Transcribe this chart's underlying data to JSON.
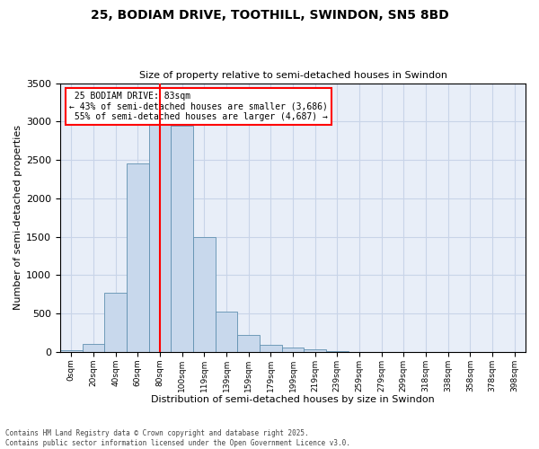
{
  "title_line1": "25, BODIAM DRIVE, TOOTHILL, SWINDON, SN5 8BD",
  "title_line2": "Size of property relative to semi-detached houses in Swindon",
  "xlabel": "Distribution of semi-detached houses by size in Swindon",
  "ylabel": "Number of semi-detached properties",
  "property_label": "25 BODIAM DRIVE: 83sqm",
  "pct_smaller": 43,
  "pct_larger": 55,
  "n_smaller": 3686,
  "n_larger": 4687,
  "bin_labels": [
    "0sqm",
    "20sqm",
    "40sqm",
    "60sqm",
    "80sqm",
    "100sqm",
    "119sqm",
    "139sqm",
    "159sqm",
    "179sqm",
    "199sqm",
    "219sqm",
    "239sqm",
    "259sqm",
    "279sqm",
    "299sqm",
    "318sqm",
    "338sqm",
    "358sqm",
    "378sqm",
    "398sqm"
  ],
  "bar_values": [
    25,
    100,
    770,
    2450,
    3000,
    2950,
    1500,
    530,
    220,
    90,
    60,
    30,
    5,
    0,
    0,
    0,
    0,
    0,
    0,
    0,
    0
  ],
  "bar_color": "#c8d8ec",
  "bar_edge_color": "#6090b0",
  "vline_bin": 4,
  "vline_color": "red",
  "grid_color": "#c8d4e8",
  "bg_color": "#e8eef8",
  "ylim": [
    0,
    3500
  ],
  "yticks": [
    0,
    500,
    1000,
    1500,
    2000,
    2500,
    3000,
    3500
  ],
  "footer_line1": "Contains HM Land Registry data © Crown copyright and database right 2025.",
  "footer_line2": "Contains public sector information licensed under the Open Government Licence v3.0."
}
